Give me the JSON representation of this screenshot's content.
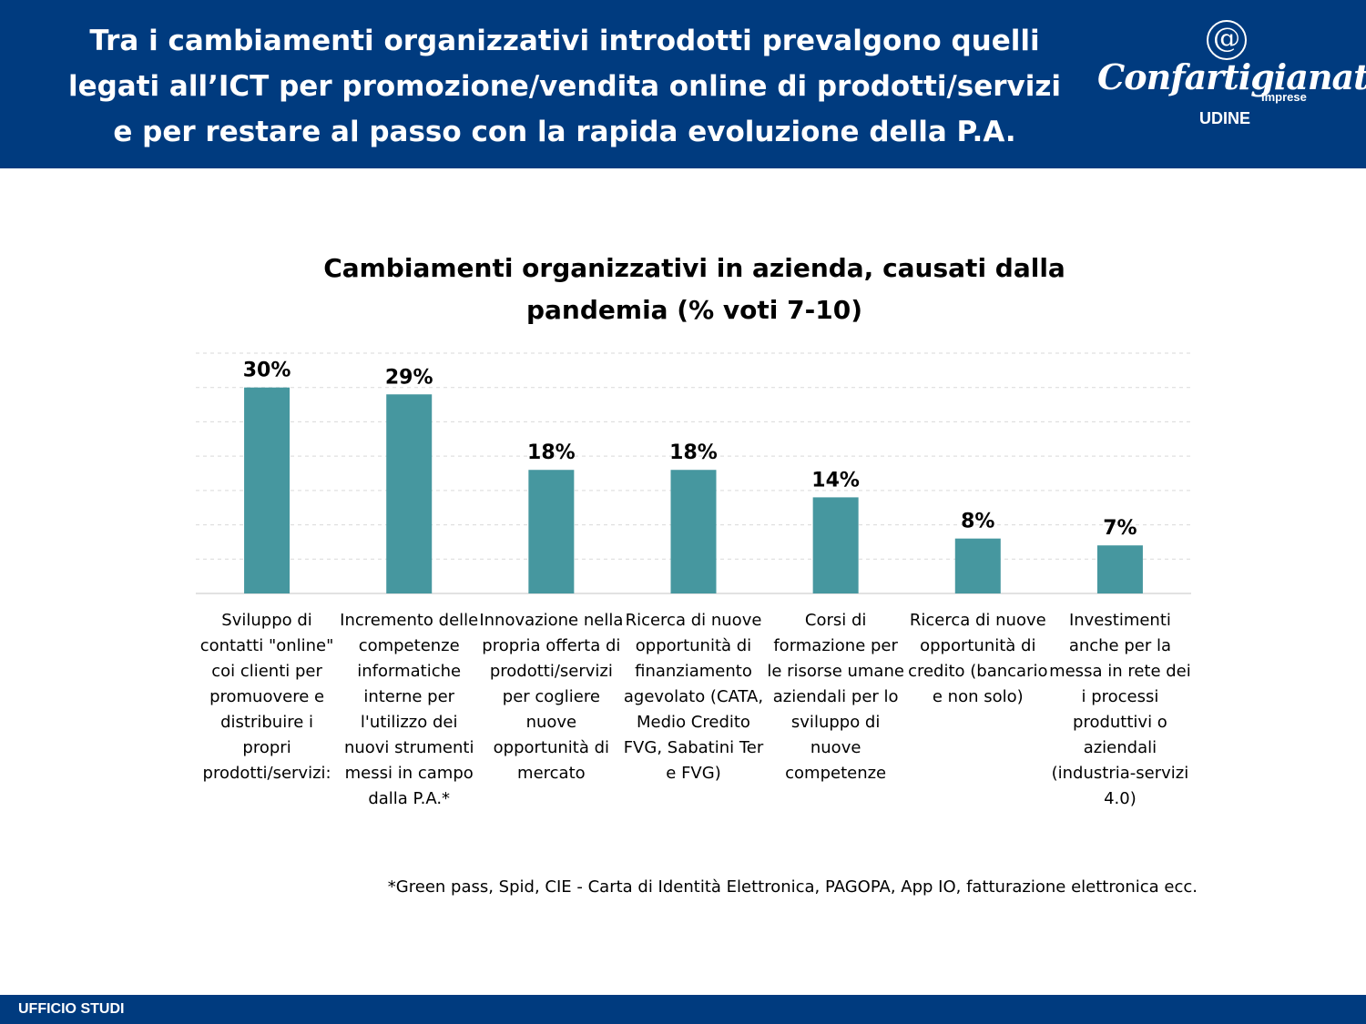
{
  "header": {
    "title": "Tra i cambiamenti organizzativi introdotti prevalgono quelli legati all’ICT per promozione/vendita online di prodotti/servizi e per restare al passo con la rapida evoluzione della P.A.",
    "logo": {
      "symbol": "@",
      "brand": "Confartigianato",
      "sub": "Imprese",
      "location": "UDINE"
    }
  },
  "colors": {
    "header_bg": "#003b7f",
    "bar": "#46979f",
    "grid": "#d9d9d9"
  },
  "chart_data": {
    "type": "bar",
    "title": "Cambiamenti organizzativi in azienda, causati dalla pandemia (% voti 7-10)",
    "categories": [
      "Sviluppo di contatti \"online\" coi clienti per promuovere e distribuire i propri prodotti/servizi:",
      "Incremento delle competenze informatiche interne per l'utilizzo dei nuovi strumenti messi in campo dalla P.A.*",
      "Innovazione nella propria offerta di prodotti/servizi per cogliere nuove opportunità di mercato",
      "Ricerca di nuove opportunità di finanziamento agevolato (CATA, Medio Credito FVG, Sabatini Ter e FVG)",
      "Corsi di formazione per le risorse umane aziendali per lo sviluppo di nuove competenze",
      "Ricerca di nuove opportunità di credito (bancario e non solo)",
      "Investimenti anche per la messa in rete dei i processi produttivi o aziendali (industria-servizi 4.0)"
    ],
    "values": [
      30,
      29,
      18,
      18,
      14,
      8,
      7
    ],
    "value_labels": [
      "30%",
      "29%",
      "18%",
      "18%",
      "14%",
      "8%",
      "7%"
    ],
    "ylim": [
      0,
      35
    ],
    "y_gridline_step": 5,
    "grid": true,
    "y_axis_labels_shown": false,
    "legend": false
  },
  "footnote": "*Green pass, Spid, CIE - Carta di Identità Elettronica, PAGOPA, App IO, fatturazione elettronica ecc.",
  "footer": {
    "label": "UFFICIO STUDI"
  }
}
